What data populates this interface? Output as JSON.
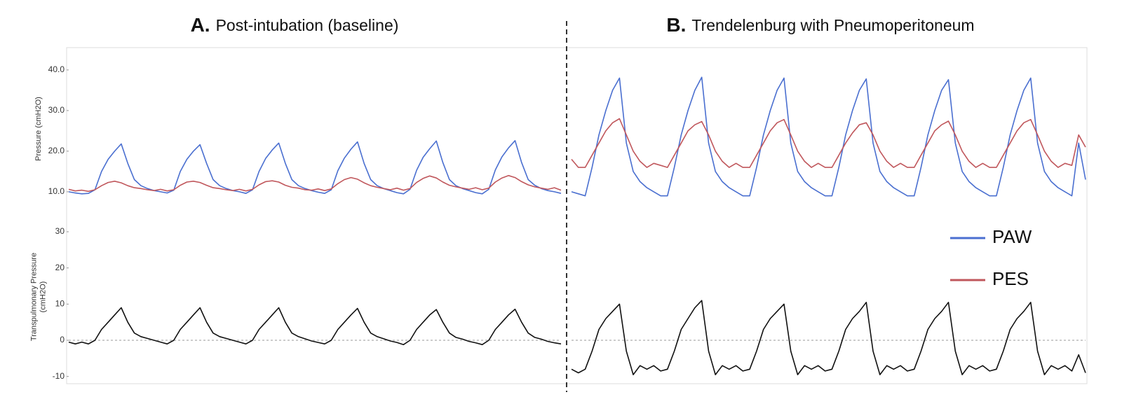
{
  "panels": [
    {
      "label": "A.",
      "title": "Post-intubation (baseline)"
    },
    {
      "label": "B.",
      "title": "Trendelenburg with Pneumoperitoneum"
    }
  ],
  "chart_data": [
    {
      "type": "line",
      "ylabel": [
        "Pressure (cmH2O)"
      ],
      "ylim": [
        5.5,
        45.5
      ],
      "yticks": [
        {
          "value": 10,
          "label": "10.0"
        },
        {
          "value": 20,
          "label": "20.0"
        },
        {
          "value": 30,
          "label": "30.0"
        },
        {
          "value": 40,
          "label": "40.0"
        }
      ],
      "series": [
        {
          "name": "PAW",
          "color": "#4a6fd0",
          "values": [
            10,
            9.7,
            9.5,
            9.6,
            10.5,
            15,
            18,
            20,
            21.8,
            17,
            13,
            11.5,
            10.8,
            10.3,
            10,
            9.7,
            10.4,
            15,
            18,
            20,
            21.6,
            17,
            13,
            11.5,
            10.8,
            10.3,
            10,
            9.6,
            10.5,
            15,
            18.2,
            20.3,
            22,
            17,
            13,
            11.5,
            10.8,
            10.3,
            9.9,
            9.6,
            10.5,
            15.2,
            18.3,
            20.5,
            22.3,
            17,
            13,
            11.5,
            10.8,
            10.3,
            9.8,
            9.5,
            10.6,
            15.3,
            18.5,
            20.6,
            22.5,
            17.2,
            13,
            11.5,
            10.8,
            10.3,
            9.8,
            9.5,
            10.6,
            15.4,
            18.6,
            20.8,
            22.6,
            17.2,
            13,
            11.6,
            10.8,
            10.3,
            10,
            9.6
          ]
        },
        {
          "name": "PES",
          "color": "#c0575c",
          "values": [
            10.6,
            10.2,
            10.4,
            10.1,
            10.5,
            11.5,
            12.3,
            12.6,
            12.2,
            11.5,
            11,
            10.8,
            10.5,
            10.3,
            10.6,
            10.2,
            10.5,
            11.6,
            12.4,
            12.6,
            12.3,
            11.6,
            11,
            10.8,
            10.5,
            10.3,
            10.6,
            10.2,
            10.6,
            11.7,
            12.5,
            12.7,
            12.4,
            11.6,
            11.1,
            10.9,
            10.5,
            10.4,
            10.7,
            10.3,
            10.7,
            12,
            13,
            13.5,
            13.1,
            12.2,
            11.5,
            11.1,
            10.8,
            10.5,
            10.9,
            10.4,
            10.8,
            12.3,
            13.3,
            13.9,
            13.4,
            12.4,
            11.6,
            11.2,
            10.9,
            10.6,
            11,
            10.5,
            10.9,
            12.4,
            13.4,
            14,
            13.5,
            12.5,
            11.7,
            11.2,
            10.9,
            10.6,
            11,
            10.4
          ]
        }
      ]
    },
    {
      "type": "line",
      "ylabel": [
        "Transpulmonary Pressure",
        "(cmH2O)"
      ],
      "ylim": [
        -12,
        36
      ],
      "yticks": [
        -10,
        0,
        10,
        20,
        30
      ],
      "hline": 0,
      "series": [
        {
          "name": "Transpulmonary",
          "color": "#111111",
          "values": [
            -0.5,
            -1,
            -0.5,
            -1,
            0,
            3,
            5,
            7,
            9,
            5,
            2,
            1,
            0.5,
            0,
            -0.5,
            -1,
            0,
            3,
            5,
            7,
            9,
            5,
            2,
            1,
            0.5,
            0,
            -0.5,
            -1,
            0,
            3,
            5,
            7,
            9,
            5,
            2,
            1,
            0.4,
            -0.2,
            -0.6,
            -1,
            0,
            3,
            5,
            7,
            8.8,
            5,
            2,
            1,
            0.4,
            -0.2,
            -0.6,
            -1.2,
            0,
            3,
            5,
            7,
            8.5,
            5,
            2,
            0.8,
            0.3,
            -0.3,
            -0.7,
            -1.2,
            0,
            3,
            5,
            7,
            8.6,
            5,
            2,
            0.8,
            0.3,
            -0.3,
            -0.7,
            -1
          ]
        }
      ]
    },
    {
      "type": "line",
      "ylim": [
        5.5,
        45.5
      ],
      "legend": true,
      "series": [
        {
          "name": "PAW",
          "color": "#4a6fd0",
          "values": [
            10,
            9.5,
            9,
            16,
            24,
            30,
            35,
            38,
            22,
            15,
            12.5,
            11,
            10,
            9,
            9,
            16,
            24,
            30,
            35,
            38.2,
            22,
            15,
            12.5,
            11,
            10,
            9,
            9,
            16,
            24,
            30,
            35,
            38,
            22,
            15,
            12.5,
            11,
            10,
            9,
            9,
            16,
            24,
            30,
            35,
            37.8,
            22,
            15,
            12.5,
            11,
            10,
            9,
            9,
            16,
            24,
            30,
            35,
            37.6,
            22,
            15,
            12.5,
            11,
            10,
            9,
            9,
            16,
            24,
            30,
            35,
            38,
            22,
            15,
            12.5,
            11,
            10,
            9,
            22,
            13
          ]
        },
        {
          "name": "PES",
          "color": "#c0575c",
          "values": [
            18,
            16,
            16,
            19,
            22,
            25,
            27,
            28,
            24,
            20,
            17.5,
            16,
            17,
            16.5,
            16,
            19,
            22,
            25,
            26.5,
            27.3,
            24,
            20,
            17.5,
            16,
            17,
            16,
            16,
            19,
            22,
            25,
            27,
            27.8,
            24,
            20,
            17.5,
            16,
            17,
            16,
            16,
            19,
            22,
            24.5,
            26.5,
            27,
            24,
            20,
            17.5,
            16,
            17,
            16,
            16,
            19,
            22,
            25,
            26.5,
            27.4,
            24,
            20,
            17.5,
            16,
            17,
            16,
            16,
            19,
            22,
            25,
            27,
            27.8,
            24,
            20,
            17.5,
            16,
            17,
            16.5,
            24,
            21
          ]
        }
      ]
    },
    {
      "type": "line",
      "ylim": [
        -12,
        36
      ],
      "hline": 0,
      "series": [
        {
          "name": "Transpulmonary",
          "color": "#111111",
          "values": [
            -8,
            -9,
            -8,
            -3,
            3,
            6,
            8,
            10,
            -3,
            -9.5,
            -7,
            -8,
            -7,
            -8.5,
            -8,
            -3,
            3,
            6,
            9,
            11,
            -3,
            -9.5,
            -7,
            -8,
            -7,
            -8.5,
            -8,
            -3,
            3,
            6,
            8,
            10,
            -3,
            -9.5,
            -7,
            -8,
            -7,
            -8.5,
            -8,
            -3,
            3,
            6,
            8,
            10.5,
            -3,
            -9.5,
            -7,
            -8,
            -7,
            -8.5,
            -8,
            -3,
            3,
            6,
            8,
            10.5,
            -3,
            -9.5,
            -7,
            -8,
            -7,
            -8.5,
            -8,
            -3,
            3,
            6,
            8,
            10.5,
            -3,
            -9.5,
            -7,
            -8,
            -7,
            -8.5,
            -4,
            -9
          ]
        }
      ]
    }
  ]
}
